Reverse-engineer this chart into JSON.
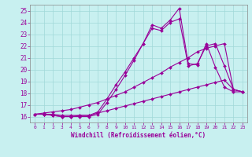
{
  "xlabel": "Windchill (Refroidissement éolien,°C)",
  "ylabel": "",
  "bg_color": "#c8f0f0",
  "line_color": "#990099",
  "grid_color": "#a0d8d8",
  "xlim": [
    -0.5,
    23.5
  ],
  "ylim": [
    15.5,
    25.5
  ],
  "xticks": [
    0,
    1,
    2,
    3,
    4,
    5,
    6,
    7,
    8,
    9,
    10,
    11,
    12,
    13,
    14,
    15,
    16,
    17,
    18,
    19,
    20,
    21,
    22,
    23
  ],
  "yticks": [
    16,
    17,
    18,
    19,
    20,
    21,
    22,
    23,
    24,
    25
  ],
  "lines": [
    {
      "x": [
        0,
        1,
        2,
        3,
        4,
        5,
        6,
        7,
        8,
        9,
        10,
        11,
        12,
        13,
        14,
        15,
        16,
        17,
        18,
        19,
        20,
        21,
        22,
        23
      ],
      "y": [
        16.2,
        16.2,
        16.1,
        16.0,
        16.0,
        16.0,
        16.0,
        16.2,
        17.2,
        18.3,
        19.5,
        20.8,
        22.2,
        23.8,
        23.5,
        24.2,
        25.2,
        20.5,
        20.4,
        22.2,
        20.2,
        18.5,
        18.1,
        18.1
      ]
    },
    {
      "x": [
        0,
        1,
        2,
        3,
        4,
        5,
        6,
        7,
        8,
        9,
        10,
        11,
        12,
        13,
        14,
        15,
        16,
        17,
        18,
        19,
        20,
        21,
        22,
        23
      ],
      "y": [
        16.2,
        16.2,
        16.1,
        16.0,
        16.0,
        16.1,
        16.1,
        16.4,
        17.5,
        18.7,
        19.8,
        21.0,
        22.2,
        23.5,
        23.3,
        24.0,
        24.3,
        20.3,
        20.5,
        22.0,
        22.2,
        20.3,
        18.3,
        18.1
      ]
    },
    {
      "x": [
        0,
        1,
        2,
        3,
        4,
        5,
        6,
        7,
        8,
        9,
        10,
        11,
        12,
        13,
        14,
        15,
        16,
        17,
        18,
        19,
        20,
        21,
        22,
        23
      ],
      "y": [
        16.2,
        16.3,
        16.4,
        16.5,
        16.6,
        16.8,
        17.0,
        17.2,
        17.5,
        17.8,
        18.1,
        18.5,
        18.9,
        19.3,
        19.7,
        20.2,
        20.6,
        21.0,
        21.5,
        21.8,
        22.0,
        22.2,
        18.3,
        18.1
      ]
    },
    {
      "x": [
        0,
        1,
        2,
        3,
        4,
        5,
        6,
        7,
        8,
        9,
        10,
        11,
        12,
        13,
        14,
        15,
        16,
        17,
        18,
        19,
        20,
        21,
        22,
        23
      ],
      "y": [
        16.2,
        16.2,
        16.2,
        16.1,
        16.1,
        16.1,
        16.1,
        16.3,
        16.5,
        16.7,
        16.9,
        17.1,
        17.3,
        17.5,
        17.7,
        17.9,
        18.1,
        18.3,
        18.5,
        18.7,
        18.9,
        19.1,
        18.3,
        18.1
      ]
    }
  ]
}
